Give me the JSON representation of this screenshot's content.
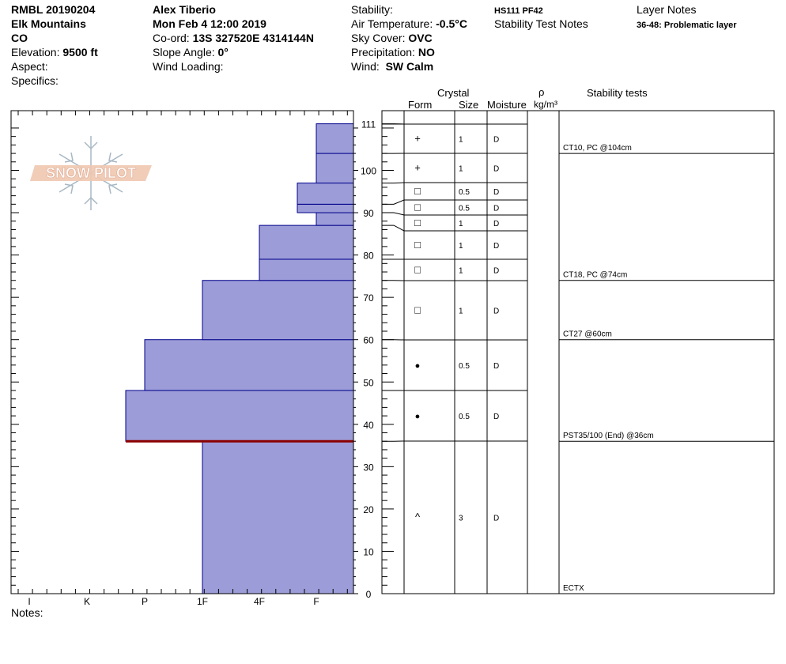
{
  "header": {
    "col1": {
      "id": "RMBL 20190204",
      "range": "Elk Mountains",
      "state": "CO",
      "elevation_label": "Elevation:",
      "elevation_value": "9500 ft",
      "aspect_label": "Aspect:",
      "specifics_label": "Specifics:"
    },
    "col2": {
      "observer": "Alex Tiberio",
      "datetime": "Mon Feb 4 12:00 2019",
      "coord_label": "Co-ord:",
      "coord_value": "13S 327520E 4314144N",
      "slope_label": "Slope Angle:",
      "slope_value": "0°",
      "wind_loading_label": "Wind Loading:"
    },
    "col3": {
      "stability_label": "Stability:",
      "air_temp_label": "Air Temperature:",
      "air_temp_value": "-0.5°C",
      "sky_label": "Sky Cover:",
      "sky_value": "OVC",
      "precip_label": "Precipitation:",
      "precip_value": "NO",
      "wind_label": "Wind:",
      "wind_value": "SW Calm"
    },
    "col4": {
      "hs_pf": "HS111 PF42",
      "stability_notes": "Stability Test Notes"
    },
    "col5": {
      "layer_notes_title": "Layer Notes",
      "layer_note": "36-48: Problematic layer"
    }
  },
  "logo": {
    "text": "SNOW PILOT"
  },
  "columns": {
    "crystal": "Crystal",
    "form": "Form",
    "size": "Size",
    "moisture": "Moisture",
    "rho": "ρ",
    "density_unit": "kg/m³",
    "stability_tests": "Stability tests"
  },
  "notes_label": "Notes:",
  "colors": {
    "hardness_fill": "#9c9cd8",
    "layer_line": "#00008b",
    "weak_layer": "#8b0000",
    "logo": "#e8b8a0"
  },
  "chart_data": {
    "type": "bar",
    "orientation": "horizontal",
    "title": "",
    "ylabel": "",
    "ylim": [
      0,
      115
    ],
    "hardness_scale": [
      "I",
      "K",
      "P",
      "1F",
      "4F",
      "F"
    ],
    "y_ticks": [
      0,
      10,
      20,
      30,
      40,
      50,
      60,
      70,
      80,
      90,
      100,
      111
    ],
    "layers": [
      {
        "bottom": 0,
        "top": 36,
        "hardness": "1F",
        "form": "^",
        "size": "3",
        "moisture": "D"
      },
      {
        "bottom": 36,
        "top": 48,
        "hardness": "P+",
        "form": "●",
        "size": "0.5",
        "moisture": "D"
      },
      {
        "bottom": 48,
        "top": 60,
        "hardness": "P",
        "form": "●",
        "size": "0.5",
        "moisture": "D"
      },
      {
        "bottom": 60,
        "top": 74,
        "hardness": "1F",
        "form": "□",
        "size": "1",
        "moisture": "D"
      },
      {
        "bottom": 74,
        "top": 79,
        "hardness": "4F",
        "form": "□",
        "size": "1",
        "moisture": "D"
      },
      {
        "bottom": 79,
        "top": 87,
        "hardness": "4F",
        "form": "□",
        "size": "1",
        "moisture": "D"
      },
      {
        "bottom": 87,
        "top": 90,
        "hardness": "F",
        "form": "□",
        "size": "1",
        "moisture": "D"
      },
      {
        "bottom": 90,
        "top": 92,
        "hardness": "F+",
        "form": "□",
        "size": "0.5",
        "moisture": "D"
      },
      {
        "bottom": 92,
        "top": 97,
        "hardness": "F+",
        "form": "□",
        "size": "0.5",
        "moisture": "D"
      },
      {
        "bottom": 97,
        "top": 104,
        "hardness": "F",
        "form": "+",
        "size": "1",
        "moisture": "D"
      },
      {
        "bottom": 104,
        "top": 111,
        "hardness": "F",
        "form": "+",
        "size": "1",
        "moisture": "D"
      }
    ],
    "weak_layer": 36,
    "stability_tests": [
      {
        "text": "CT10, PC @104cm",
        "at": 104
      },
      {
        "text": "CT18, PC @74cm",
        "at": 74
      },
      {
        "text": "CT27 @60cm",
        "at": 60
      },
      {
        "text": "PST35/100 (End) @36cm",
        "at": 36
      },
      {
        "text": "ECTX",
        "at": 0
      }
    ]
  }
}
